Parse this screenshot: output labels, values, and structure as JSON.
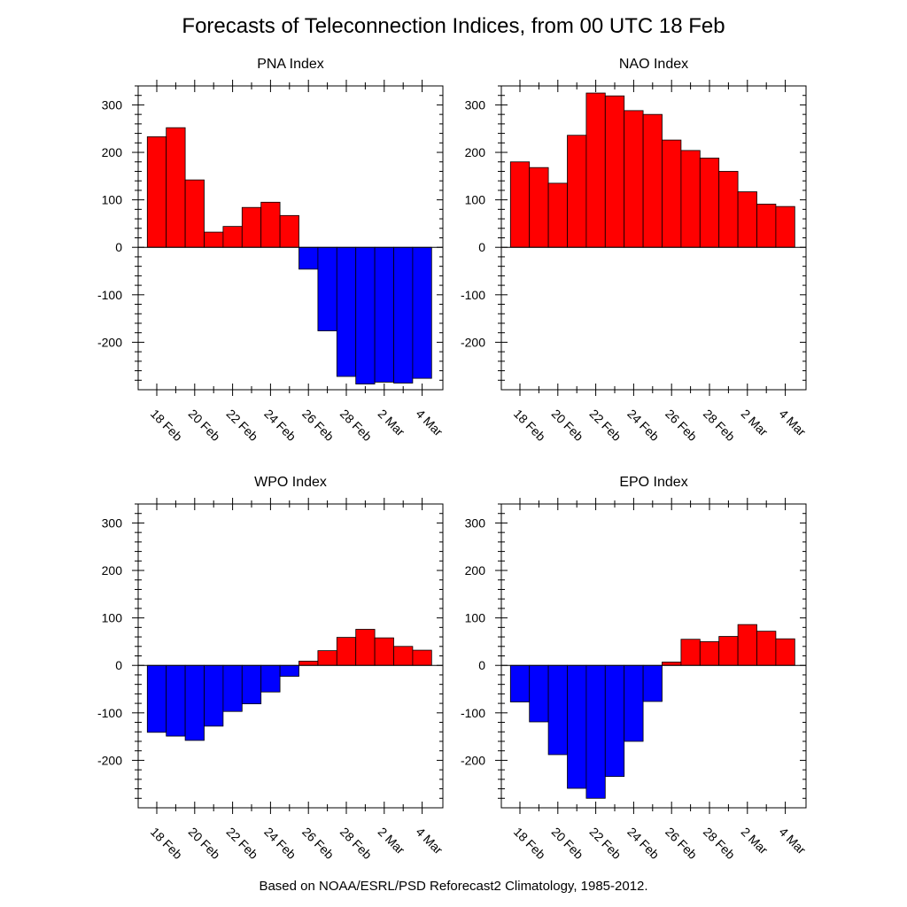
{
  "title": "Forecasts of Teleconnection Indices, from 00 UTC 18 Feb",
  "footer": "Based on NOAA/ESRL/PSD Reforecast2 Climatology, 1985-2012.",
  "colors": {
    "positive": "#ff0000",
    "negative": "#0000ff",
    "axis": "#000000"
  },
  "chart_data": [
    {
      "type": "bar",
      "title": "PNA Index",
      "categories": [
        "18 Feb",
        "19 Feb",
        "20 Feb",
        "21 Feb",
        "22 Feb",
        "23 Feb",
        "24 Feb",
        "25 Feb",
        "26 Feb",
        "27 Feb",
        "28 Feb",
        "1 Mar",
        "2 Mar",
        "3 Mar",
        "4 Mar"
      ],
      "values": [
        233,
        252,
        142,
        32,
        44,
        84,
        95,
        67,
        -46,
        -176,
        -272,
        -288,
        -284,
        -286,
        -276
      ],
      "ylim": [
        -300,
        340
      ],
      "yticks": [
        300,
        200,
        100,
        0,
        -100,
        -200
      ],
      "xtick_labels": [
        "18 Feb",
        "20 Feb",
        "22 Feb",
        "24 Feb",
        "26 Feb",
        "28 Feb",
        "2 Mar",
        "4 Mar"
      ]
    },
    {
      "type": "bar",
      "title": "NAO Index",
      "categories": [
        "18 Feb",
        "19 Feb",
        "20 Feb",
        "21 Feb",
        "22 Feb",
        "23 Feb",
        "24 Feb",
        "25 Feb",
        "26 Feb",
        "27 Feb",
        "28 Feb",
        "1 Mar",
        "2 Mar",
        "3 Mar",
        "4 Mar"
      ],
      "values": [
        180,
        168,
        135,
        236,
        325,
        319,
        288,
        280,
        226,
        204,
        188,
        160,
        117,
        91,
        86
      ],
      "ylim": [
        -300,
        340
      ],
      "yticks": [
        300,
        200,
        100,
        0,
        -100,
        -200
      ],
      "xtick_labels": [
        "18 Feb",
        "20 Feb",
        "22 Feb",
        "24 Feb",
        "26 Feb",
        "28 Feb",
        "2 Mar",
        "4 Mar"
      ]
    },
    {
      "type": "bar",
      "title": "WPO Index",
      "categories": [
        "18 Feb",
        "19 Feb",
        "20 Feb",
        "21 Feb",
        "22 Feb",
        "23 Feb",
        "24 Feb",
        "25 Feb",
        "26 Feb",
        "27 Feb",
        "28 Feb",
        "1 Mar",
        "2 Mar",
        "3 Mar",
        "4 Mar"
      ],
      "values": [
        -141,
        -149,
        -158,
        -128,
        -97,
        -81,
        -56,
        -23,
        9,
        31,
        59,
        76,
        58,
        40,
        32
      ],
      "ylim": [
        -300,
        340
      ],
      "yticks": [
        300,
        200,
        100,
        0,
        -100,
        -200
      ],
      "xtick_labels": [
        "18 Feb",
        "20 Feb",
        "22 Feb",
        "24 Feb",
        "26 Feb",
        "28 Feb",
        "2 Mar",
        "4 Mar"
      ]
    },
    {
      "type": "bar",
      "title": "EPO Index",
      "categories": [
        "18 Feb",
        "19 Feb",
        "20 Feb",
        "21 Feb",
        "22 Feb",
        "23 Feb",
        "24 Feb",
        "25 Feb",
        "26 Feb",
        "27 Feb",
        "28 Feb",
        "1 Mar",
        "2 Mar",
        "3 Mar",
        "4 Mar"
      ],
      "values": [
        -77,
        -119,
        -188,
        -259,
        -280,
        -234,
        -160,
        -76,
        7,
        55,
        50,
        61,
        86,
        72,
        56
      ],
      "ylim": [
        -300,
        340
      ],
      "yticks": [
        300,
        200,
        100,
        0,
        -100,
        -200
      ],
      "xtick_labels": [
        "18 Feb",
        "20 Feb",
        "22 Feb",
        "24 Feb",
        "26 Feb",
        "28 Feb",
        "2 Mar",
        "4 Mar"
      ]
    }
  ]
}
